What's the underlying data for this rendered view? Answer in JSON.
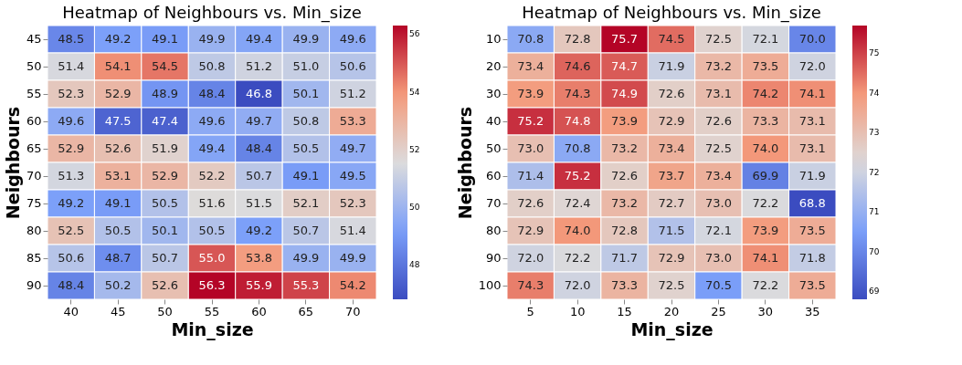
{
  "chart_data": [
    {
      "type": "heatmap",
      "title": "Heatmap of Neighbours vs. Min_size",
      "xlabel": "Min_size",
      "ylabel": "Neighbours",
      "clim": [
        46.8,
        56.3
      ],
      "cticks": [
        48,
        50,
        52,
        54,
        56
      ],
      "categories": [
        "40",
        "45",
        "50",
        "55",
        "60",
        "65",
        "70"
      ],
      "y_categories": [
        "45",
        "50",
        "55",
        "60",
        "65",
        "70",
        "75",
        "80",
        "85",
        "90"
      ],
      "cells": [
        [
          48.5,
          49.2,
          49.1,
          49.9,
          49.4,
          49.9,
          49.6
        ],
        [
          51.4,
          54.1,
          54.5,
          50.8,
          51.2,
          51.0,
          50.6
        ],
        [
          52.3,
          52.9,
          48.9,
          48.4,
          46.8,
          50.1,
          51.2
        ],
        [
          49.6,
          47.5,
          47.4,
          49.6,
          49.7,
          50.8,
          53.3
        ],
        [
          52.9,
          52.6,
          51.9,
          49.4,
          48.4,
          50.5,
          49.7
        ],
        [
          51.3,
          53.1,
          52.9,
          52.2,
          50.7,
          49.1,
          49.5
        ],
        [
          49.2,
          49.1,
          50.5,
          51.6,
          51.5,
          52.1,
          52.3
        ],
        [
          52.5,
          50.5,
          50.1,
          50.5,
          49.2,
          50.7,
          51.4
        ],
        [
          50.6,
          48.7,
          50.7,
          55.0,
          53.8,
          49.9,
          49.9
        ],
        [
          48.4,
          50.2,
          52.6,
          56.3,
          55.9,
          55.3,
          54.2
        ]
      ],
      "cell_labels": [
        [
          "48.5",
          "49.2",
          "49.1",
          "49.9",
          "49.4",
          "49.9",
          "49.6"
        ],
        [
          "51.4",
          "54.1",
          "54.5",
          "50.8",
          "51.2",
          "51.0",
          "50.6"
        ],
        [
          "52.3",
          "52.9",
          "48.9",
          "48.4",
          "46.8",
          "50.1",
          "51.2"
        ],
        [
          "49.6",
          "47.5",
          "47.4",
          "49.6",
          "49.7",
          "50.8",
          "53.3"
        ],
        [
          "52.9",
          "52.6",
          "51.9",
          "49.4",
          "48.4",
          "50.5",
          "49.7"
        ],
        [
          "51.3",
          "53.1",
          "52.9",
          "52.2",
          "50.7",
          "49.1",
          "49.5"
        ],
        [
          "49.2",
          "49.1",
          "50.5",
          "51.6",
          "51.5",
          "52.1",
          "52.3"
        ],
        [
          "52.5",
          "50.5",
          "50.1",
          "50.5",
          "49.2",
          "50.7",
          "51.4"
        ],
        [
          "50.6",
          "48.7",
          "50.7",
          "55.0",
          "53.8",
          "49.9",
          "49.9"
        ],
        [
          "48.4",
          "50.2",
          "52.6",
          "56.3",
          "55.9",
          "55.3",
          "54.2"
        ]
      ]
    },
    {
      "type": "heatmap",
      "title": "Heatmap of Neighbours vs. Min_size",
      "xlabel": "Min_size",
      "ylabel": "Neighbours",
      "clim": [
        68.8,
        75.7
      ],
      "cticks": [
        69,
        70,
        71,
        72,
        73,
        74,
        75
      ],
      "categories": [
        "5",
        "10",
        "15",
        "20",
        "25",
        "30",
        "35"
      ],
      "y_categories": [
        "10",
        "20",
        "30",
        "40",
        "50",
        "60",
        "70",
        "80",
        "90",
        "100"
      ],
      "cells": [
        [
          70.8,
          72.8,
          75.7,
          74.5,
          72.5,
          72.1,
          70.0
        ],
        [
          73.4,
          74.6,
          74.7,
          71.9,
          73.2,
          73.5,
          72.0
        ],
        [
          73.9,
          74.3,
          74.9,
          72.6,
          73.1,
          74.2,
          74.1
        ],
        [
          75.2,
          74.8,
          73.9,
          72.9,
          72.6,
          73.3,
          73.1
        ],
        [
          73.0,
          70.8,
          73.2,
          73.4,
          72.5,
          74.0,
          73.1
        ],
        [
          71.4,
          75.2,
          72.6,
          73.7,
          73.4,
          69.9,
          71.9
        ],
        [
          72.6,
          72.4,
          73.2,
          72.7,
          73.0,
          72.2,
          68.8
        ],
        [
          72.9,
          74.0,
          72.8,
          71.5,
          72.1,
          73.9,
          73.5
        ],
        [
          72.0,
          72.2,
          71.7,
          72.9,
          73.0,
          74.1,
          71.8
        ],
        [
          74.3,
          72.0,
          73.3,
          72.5,
          70.5,
          72.2,
          73.5
        ]
      ],
      "cell_labels": [
        [
          "70.8",
          "72.8",
          "75.7",
          "74.5",
          "72.5",
          "72.1",
          "70.0"
        ],
        [
          "73.4",
          "74.6",
          "74.7",
          "71.9",
          "73.2",
          "73.5",
          "72.0"
        ],
        [
          "73.9",
          "74.3",
          "74.9",
          "72.6",
          "73.1",
          "74.2",
          "74.1"
        ],
        [
          "75.2",
          "74.8",
          "73.9",
          "72.9",
          "72.6",
          "73.3",
          "73.1"
        ],
        [
          "73.0",
          "70.8",
          "73.2",
          "73.4",
          "72.5",
          "74.0",
          "73.1"
        ],
        [
          "71.4",
          "75.2",
          "72.6",
          "73.7",
          "73.4",
          "69.9",
          "71.9"
        ],
        [
          "72.6",
          "72.4",
          "73.2",
          "72.7",
          "73.0",
          "72.2",
          "68.8"
        ],
        [
          "72.9",
          "74.0",
          "72.8",
          "71.5",
          "72.1",
          "73.9",
          "73.5"
        ],
        [
          "72.0",
          "72.2",
          "71.7",
          "72.9",
          "73.0",
          "74.1",
          "71.8"
        ],
        [
          "74.3",
          "72.0",
          "73.3",
          "72.5",
          "70.5",
          "72.2",
          "73.5"
        ]
      ]
    }
  ]
}
